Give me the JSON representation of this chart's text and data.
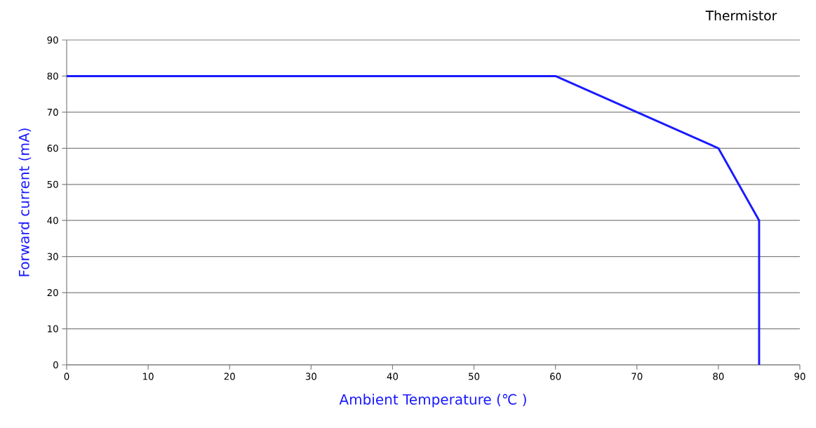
{
  "chart_data": {
    "type": "line",
    "title": "Thermistor",
    "xlabel": "Ambient Temperature (℃ )",
    "ylabel": "Forward current (mA)",
    "x": [
      0,
      60,
      80,
      85,
      85
    ],
    "series": [
      {
        "color": "#1a1aff",
        "values": [
          80,
          80,
          60,
          40,
          0
        ]
      }
    ],
    "xlim": [
      0,
      90
    ],
    "ylim": [
      0,
      90
    ],
    "xticks": [
      0,
      10,
      20,
      30,
      40,
      50,
      60,
      70,
      80,
      90
    ],
    "yticks": [
      0,
      10,
      20,
      30,
      40,
      50,
      60,
      70,
      80,
      90
    ],
    "grid": "y",
    "line_style": "solid"
  }
}
